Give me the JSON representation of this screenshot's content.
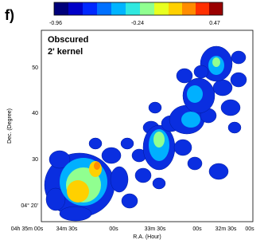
{
  "panel_label": "f)",
  "annotation": [
    "Obscured",
    "2' kernel"
  ],
  "colorbar": {
    "ticks": [
      -0.96,
      -0.24,
      0.47
    ]
  },
  "axes": {
    "x_title": "R.A. (Hour)",
    "y_title": "Dec. (Degree)",
    "x_ticks": [
      "04h 35m 00s",
      "34m 30s",
      "00s",
      "33m 30s",
      "00s",
      "32m 30s",
      "00s"
    ],
    "y_ticks": [
      "50",
      "40",
      "30",
      "04° 20'"
    ]
  }
}
